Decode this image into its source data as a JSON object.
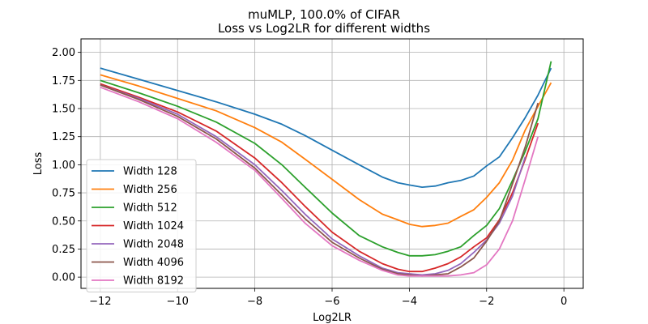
{
  "chart_data": {
    "type": "line",
    "title": "muMLP, 100.0% of CIFAR",
    "subtitle": "Loss vs Log2LR for different widths",
    "xlabel": "Log2LR",
    "ylabel": "Loss",
    "xlim": [
      -12.5,
      0.5
    ],
    "ylim": [
      -0.1,
      2.12
    ],
    "xticks": [
      -12,
      -10,
      -8,
      -6,
      -4,
      -2,
      0
    ],
    "xtick_labels": [
      "−12",
      "−10",
      "−8",
      "−6",
      "−4",
      "−2",
      "0"
    ],
    "yticks": [
      0.0,
      0.25,
      0.5,
      0.75,
      1.0,
      1.25,
      1.5,
      1.75,
      2.0
    ],
    "ytick_labels": [
      "0.00",
      "0.25",
      "0.50",
      "0.75",
      "1.00",
      "1.25",
      "1.50",
      "1.75",
      "2.00"
    ],
    "grid": true,
    "legend_position": "lower-left",
    "series": [
      {
        "name": "Width 128",
        "color": "#1f77b4",
        "x": [
          -12,
          -11,
          -10,
          -9,
          -8,
          -7.3,
          -6.7,
          -6,
          -5.3,
          -4.7,
          -4.3,
          -4,
          -3.67,
          -3.33,
          -3,
          -2.67,
          -2.33,
          -2,
          -1.67,
          -1.33,
          -1,
          -0.67,
          -0.33
        ],
        "y": [
          1.86,
          1.76,
          1.66,
          1.56,
          1.45,
          1.36,
          1.26,
          1.13,
          1.0,
          0.89,
          0.84,
          0.82,
          0.8,
          0.81,
          0.84,
          0.86,
          0.9,
          0.99,
          1.07,
          1.24,
          1.42,
          1.62,
          1.86
        ]
      },
      {
        "name": "Width 256",
        "color": "#ff7f0e",
        "x": [
          -12,
          -11,
          -10,
          -9,
          -8,
          -7.3,
          -6.7,
          -6,
          -5.3,
          -4.7,
          -4.3,
          -4,
          -3.67,
          -3.33,
          -3,
          -2.67,
          -2.33,
          -2,
          -1.67,
          -1.33,
          -1,
          -0.67,
          -0.33
        ],
        "y": [
          1.8,
          1.7,
          1.59,
          1.48,
          1.33,
          1.2,
          1.05,
          0.87,
          0.69,
          0.56,
          0.51,
          0.47,
          0.45,
          0.46,
          0.48,
          0.54,
          0.6,
          0.71,
          0.84,
          1.04,
          1.31,
          1.52,
          1.73
        ]
      },
      {
        "name": "Width 512",
        "color": "#2ca02c",
        "x": [
          -12,
          -11,
          -10,
          -9,
          -8,
          -7.3,
          -6.7,
          -6,
          -5.3,
          -4.7,
          -4.3,
          -4,
          -3.67,
          -3.33,
          -3,
          -2.67,
          -2.33,
          -2,
          -1.67,
          -1.33,
          -1,
          -0.67,
          -0.33
        ],
        "y": [
          1.75,
          1.64,
          1.52,
          1.38,
          1.19,
          1.0,
          0.8,
          0.57,
          0.37,
          0.27,
          0.22,
          0.19,
          0.19,
          0.2,
          0.23,
          0.27,
          0.37,
          0.46,
          0.61,
          0.86,
          1.12,
          1.41,
          1.92
        ]
      },
      {
        "name": "Width 1024",
        "color": "#d62728",
        "x": [
          -12,
          -11,
          -10,
          -9,
          -8,
          -7.3,
          -6.7,
          -6,
          -5.3,
          -4.7,
          -4.3,
          -4,
          -3.67,
          -3.33,
          -3,
          -2.67,
          -2.33,
          -2,
          -1.67,
          -1.33,
          -1,
          -0.67
        ],
        "y": [
          1.72,
          1.6,
          1.47,
          1.3,
          1.06,
          0.84,
          0.63,
          0.4,
          0.23,
          0.12,
          0.07,
          0.05,
          0.05,
          0.08,
          0.12,
          0.18,
          0.27,
          0.35,
          0.51,
          0.75,
          1.05,
          1.37
        ]
      },
      {
        "name": "Width 2048",
        "color": "#9467bd",
        "x": [
          -12,
          -11,
          -10,
          -9,
          -8,
          -7.3,
          -6.7,
          -6,
          -5.3,
          -4.7,
          -4.3,
          -4,
          -3.67,
          -3.33,
          -3,
          -2.67,
          -2.33,
          -2,
          -1.67,
          -1.33,
          -1
        ],
        "y": [
          1.71,
          1.59,
          1.45,
          1.25,
          1.0,
          0.77,
          0.56,
          0.34,
          0.19,
          0.08,
          0.04,
          0.03,
          0.02,
          0.03,
          0.06,
          0.12,
          0.22,
          0.33,
          0.48,
          0.72,
          1.07
        ]
      },
      {
        "name": "Width 4096",
        "color": "#8c564b",
        "x": [
          -12,
          -11,
          -10,
          -9,
          -8,
          -7.3,
          -6.7,
          -6,
          -5.3,
          -4.7,
          -4.3,
          -4,
          -3.67,
          -3.33,
          -3,
          -2.67,
          -2.33,
          -2,
          -1.67,
          -1.33,
          -1,
          -0.67
        ],
        "y": [
          1.71,
          1.58,
          1.43,
          1.23,
          0.97,
          0.73,
          0.52,
          0.31,
          0.17,
          0.07,
          0.03,
          0.02,
          0.01,
          0.02,
          0.03,
          0.09,
          0.17,
          0.32,
          0.5,
          0.83,
          1.16,
          1.55
        ]
      },
      {
        "name": "Width 8192",
        "color": "#e377c2",
        "x": [
          -12,
          -11,
          -10,
          -9,
          -8,
          -7.3,
          -6.7,
          -6,
          -5.3,
          -4.7,
          -4.3,
          -4,
          -3.67,
          -3.33,
          -3,
          -2.67,
          -2.33,
          -2,
          -1.67,
          -1.33,
          -1,
          -0.67
        ],
        "y": [
          1.69,
          1.56,
          1.41,
          1.2,
          0.95,
          0.7,
          0.48,
          0.28,
          0.15,
          0.06,
          0.02,
          0.01,
          0.01,
          0.01,
          0.01,
          0.02,
          0.04,
          0.11,
          0.25,
          0.5,
          0.87,
          1.25
        ]
      }
    ]
  }
}
